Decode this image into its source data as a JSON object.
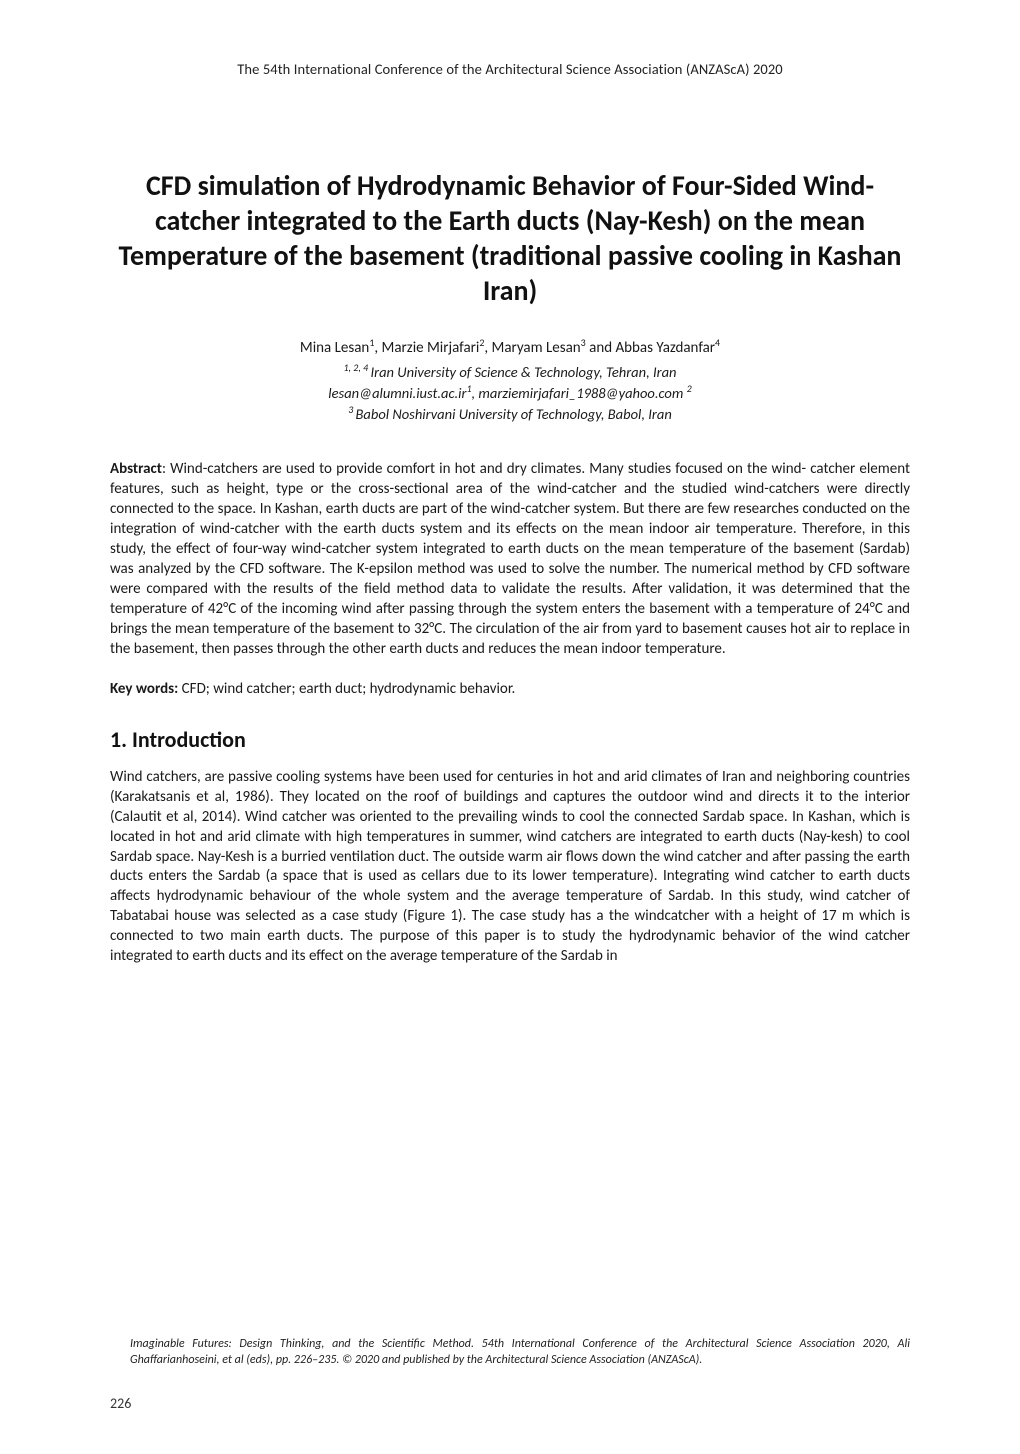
{
  "running_header": "The 54th International Conference of the Architectural Science Association (ANZAScA) 2020",
  "title": "CFD simulation of Hydrodynamic Behavior of Four-Sided Wind-catcher integrated to the Earth ducts (Nay-Kesh) on the mean Temperature of the basement (traditional passive cooling in Kashan Iran)",
  "authors": {
    "names_prefix": "Mina Lesan",
    "sup1": "1",
    "mid1": ", Marzie Mirjafari",
    "sup2": "2",
    "mid2": ", Maryam Lesan",
    "sup3": "3",
    "mid3": " and Abbas Yazdanfar",
    "sup4": "4",
    "affil1_sup": "1, 2, 4 ",
    "affil1": "Iran University of Science & Technology, Tehran, Iran",
    "emails": "lesan@alumni.iust.ac.ir",
    "email_sup1": "1",
    "emails_mid": ", marziemirjafari_1988@yahoo.com ",
    "email_sup2": "2",
    "affil2_sup": "3 ",
    "affil2": "Babol Noshirvani University of Technology, Babol, Iran"
  },
  "abstract_label": "Abstract",
  "abstract_text": ": Wind-catchers are used to provide comfort in hot and dry climates. Many studies focused on the wind- catcher element features, such as height, type or the cross-sectional area of the wind-catcher and the studied wind-catchers were directly connected to the space. In Kashan, earth ducts are part of the wind-catcher system. But there are few researches conducted on the integration of wind-catcher with the earth ducts system and its effects on the mean indoor air temperature. Therefore, in this study, the effect of four-way wind-catcher system integrated to earth ducts on the mean temperature of the basement (Sardab) was analyzed by the CFD software. The K-epsilon method was used to solve the number. The numerical method by CFD software were compared with the results of the field method data to validate the results. After validation, it was determined that the temperature of 42°C of the incoming wind after passing through the system enters the basement with a temperature of 24°C and brings the mean temperature of the basement to 32°C. The circulation of the air from yard to basement causes hot air to replace in the basement, then passes through the other earth ducts and reduces the mean indoor temperature.",
  "keywords_label": "Key words:",
  "keywords_text": " CFD; wind catcher; earth duct; hydrodynamic behavior.",
  "section1_heading": "1. Introduction",
  "section1_body": "Wind catchers, are passive cooling systems have been used for centuries in hot and arid climates of Iran and neighboring countries (Karakatsanis et al, 1986). They located on the roof of buildings and captures the outdoor wind and directs it to the interior (Calautit et al, 2014). Wind catcher was oriented to the prevailing winds to cool the connected Sardab space. In Kashan, which is located in hot and arid climate with high temperatures in summer, wind catchers are integrated to earth ducts (Nay-kesh) to cool Sardab space. Nay-Kesh is a burried ventilation duct. The outside warm air flows down the wind catcher and after passing the earth ducts enters the Sardab (a space that is used as cellars due to its lower temperature). Integrating wind catcher to earth ducts affects hydrodynamic behaviour of the whole system and the average temperature of Sardab. In this study, wind catcher of Tabatabai house was selected as a case study (Figure 1). The case study has a the windcatcher with a height of 17 m which is connected to two main earth ducts. The purpose of this paper is to study the hydrodynamic behavior of the wind catcher integrated to earth ducts and its effect on the average temperature of the Sardab in",
  "footer_note": "Imaginable Futures: Design Thinking, and the Scientific Method. 54th International Conference of the Architectural Science Association 2020, Ali Ghaffarianhoseini, et al (eds), pp. 226–235. © 2020 and published by the Architectural Science Association (ANZAScA).",
  "page_number": "226"
}
